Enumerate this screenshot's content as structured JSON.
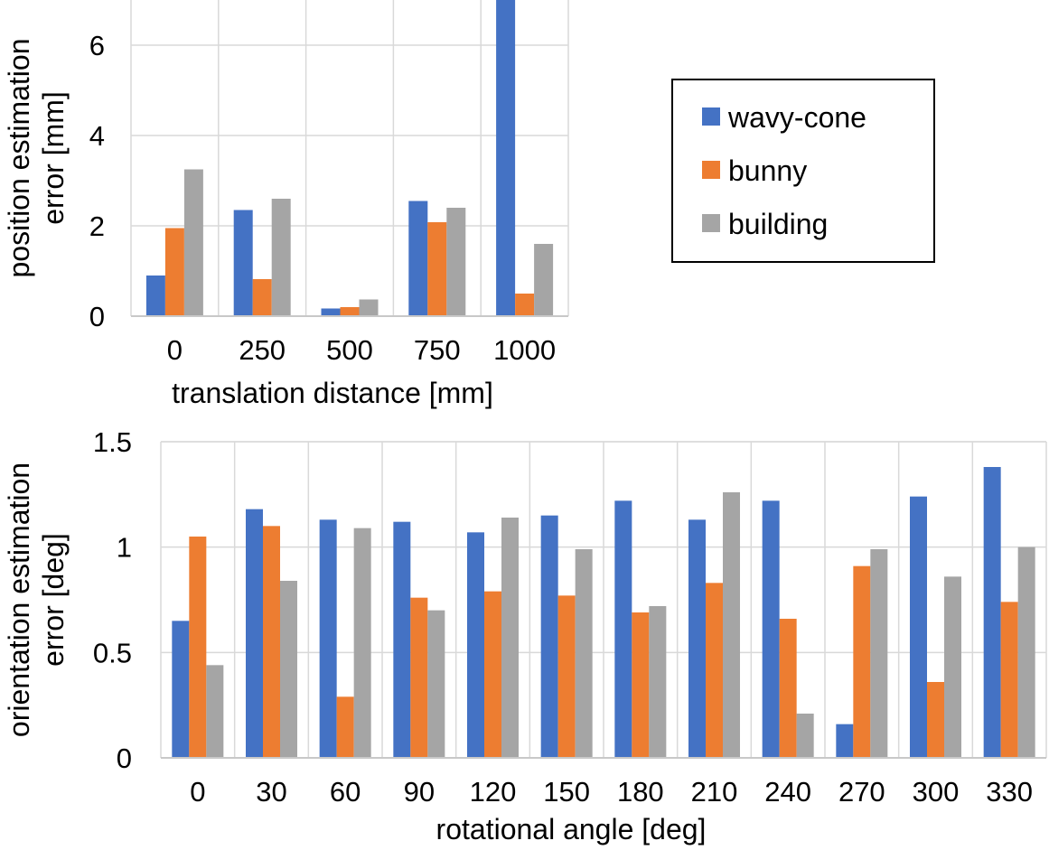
{
  "chart_data": [
    {
      "type": "bar",
      "title": "",
      "categories": [
        "0",
        "250",
        "500",
        "750",
        "1000"
      ],
      "series": [
        {
          "name": "wavy-cone",
          "color": "#4472c4",
          "values": [
            0.9,
            2.35,
            0.17,
            2.55,
            7.0
          ]
        },
        {
          "name": "bunny",
          "color": "#ed7d31",
          "values": [
            1.95,
            0.82,
            0.2,
            2.08,
            0.5
          ]
        },
        {
          "name": "building",
          "color": "#a5a5a5",
          "values": [
            3.25,
            2.6,
            0.37,
            2.4,
            1.6
          ]
        }
      ],
      "xlabel": "translation distance [mm]",
      "ylabel": "position estimation\nerror [mm]",
      "ylim": [
        0,
        7
      ],
      "yticks": [
        "0",
        "2",
        "4",
        "6"
      ],
      "grid": true
    },
    {
      "type": "bar",
      "title": "",
      "categories": [
        "0",
        "30",
        "60",
        "90",
        "120",
        "150",
        "180",
        "210",
        "240",
        "270",
        "300",
        "330"
      ],
      "series": [
        {
          "name": "wavy-cone",
          "color": "#4472c4",
          "values": [
            0.65,
            1.18,
            1.13,
            1.12,
            1.07,
            1.15,
            1.22,
            1.13,
            1.22,
            0.16,
            1.24,
            1.38
          ]
        },
        {
          "name": "bunny",
          "color": "#ed7d31",
          "values": [
            1.05,
            1.1,
            0.29,
            0.76,
            0.79,
            0.77,
            0.69,
            0.83,
            0.66,
            0.91,
            0.36,
            0.74
          ]
        },
        {
          "name": "building",
          "color": "#a5a5a5",
          "values": [
            0.44,
            0.84,
            1.09,
            0.7,
            1.14,
            0.99,
            0.72,
            1.26,
            0.21,
            0.99,
            0.86,
            1.0
          ]
        }
      ],
      "xlabel": "rotational angle [deg]",
      "ylabel": "orientation estimation\nerror [deg]",
      "ylim": [
        0,
        1.5
      ],
      "yticks": [
        "0",
        "0.5",
        "1",
        "1.5"
      ],
      "grid": true
    }
  ],
  "legend": {
    "placement": "right of top chart",
    "entries": [
      {
        "label": "wavy-cone",
        "color": "#4472c4"
      },
      {
        "label": "bunny",
        "color": "#ed7d31"
      },
      {
        "label": "building",
        "color": "#a5a5a5"
      }
    ]
  }
}
